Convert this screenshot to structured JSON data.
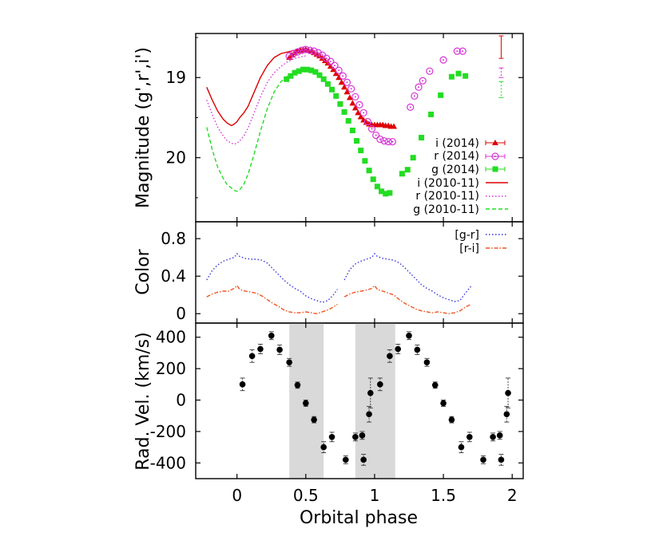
{
  "figure": {
    "shared_xlabel": "Orbital phase"
  },
  "chart_data": [
    {
      "type": "line",
      "panel": "magnitude",
      "ylabel": "Magnitude (g',r',i')",
      "xlim": [
        -0.3,
        2.08
      ],
      "ylim": [
        20.8,
        18.45
      ],
      "yaxis_inverted": true,
      "xticks": [
        "0",
        "0.5",
        "1",
        "1.5",
        "2"
      ],
      "yticks": [
        "19",
        "20"
      ],
      "legend_placement": "right",
      "series": [
        {
          "name": "i (2014)",
          "style": "filled-triangle",
          "color": "#dd0000",
          "x": [
            0.38,
            0.4,
            0.42,
            0.44,
            0.46,
            0.48,
            0.5,
            0.52,
            0.54,
            0.56,
            0.58,
            0.6,
            0.62,
            0.64,
            0.66,
            0.68,
            0.7,
            0.72,
            0.74,
            0.76,
            0.78,
            0.8,
            0.82,
            0.84,
            0.86,
            0.88,
            0.9,
            0.92,
            0.94,
            0.96,
            0.98,
            1.0,
            1.02,
            1.04,
            1.06,
            1.08,
            1.1,
            1.12,
            1.14
          ],
          "y": [
            18.75,
            18.72,
            18.69,
            18.67,
            18.66,
            18.65,
            18.65,
            18.66,
            18.67,
            18.69,
            18.71,
            18.73,
            18.76,
            18.79,
            18.82,
            18.86,
            18.9,
            18.95,
            19.0,
            19.06,
            19.12,
            19.18,
            19.25,
            19.32,
            19.38,
            19.44,
            19.49,
            19.53,
            19.56,
            19.58,
            19.59,
            19.59,
            19.59,
            19.59,
            19.59,
            19.6,
            19.6,
            19.61,
            19.61
          ]
        },
        {
          "name": "r (2014)",
          "style": "open-circle",
          "color": "#d633d6",
          "x": [
            0.38,
            0.41,
            0.44,
            0.47,
            0.5,
            0.53,
            0.56,
            0.59,
            0.62,
            0.65,
            0.68,
            0.71,
            0.74,
            0.77,
            0.8,
            0.83,
            0.86,
            0.89,
            0.92,
            0.95,
            0.98,
            1.01,
            1.04,
            1.07,
            1.1,
            1.13,
            1.26,
            1.29,
            1.32,
            1.35,
            1.4,
            1.5,
            1.6,
            1.64
          ],
          "y": [
            18.73,
            18.7,
            18.68,
            18.66,
            18.65,
            18.66,
            18.67,
            18.69,
            18.72,
            18.76,
            18.8,
            18.85,
            18.91,
            18.98,
            19.06,
            19.14,
            19.24,
            19.34,
            19.44,
            19.55,
            19.64,
            19.72,
            19.77,
            19.79,
            19.8,
            19.8,
            19.37,
            19.23,
            19.12,
            19.04,
            18.92,
            18.78,
            18.67,
            18.67
          ]
        },
        {
          "name": "g (2014)",
          "style": "filled-square",
          "color": "#22dd22",
          "x": [
            0.36,
            0.39,
            0.42,
            0.45,
            0.48,
            0.51,
            0.54,
            0.57,
            0.6,
            0.63,
            0.66,
            0.69,
            0.72,
            0.75,
            0.78,
            0.81,
            0.84,
            0.87,
            0.9,
            0.93,
            0.96,
            0.99,
            1.02,
            1.05,
            1.08,
            1.11,
            1.2,
            1.24,
            1.28,
            1.34,
            1.41,
            1.48,
            1.56,
            1.61,
            1.66
          ],
          "y": [
            19.02,
            18.98,
            18.94,
            18.92,
            18.9,
            18.9,
            18.91,
            18.93,
            18.97,
            19.02,
            19.08,
            19.15,
            19.23,
            19.33,
            19.43,
            19.54,
            19.66,
            19.79,
            19.91,
            20.04,
            20.16,
            20.27,
            20.36,
            20.42,
            20.45,
            20.44,
            20.2,
            20.15,
            20.0,
            19.75,
            19.46,
            19.22,
            18.99,
            18.95,
            18.98
          ]
        },
        {
          "name": "i (2010-11)",
          "style": "solid",
          "color": "#dd0000",
          "x": [
            -0.22,
            -0.18,
            -0.14,
            -0.1,
            -0.07,
            -0.04,
            -0.02,
            0.0,
            0.02,
            0.05,
            0.08,
            0.12,
            0.17,
            0.22,
            0.27,
            0.32,
            0.37,
            0.42,
            0.47,
            0.5
          ],
          "y": [
            19.12,
            19.28,
            19.42,
            19.52,
            19.57,
            19.6,
            19.58,
            19.55,
            19.5,
            19.44,
            19.36,
            19.2,
            19.0,
            18.85,
            18.75,
            18.7,
            18.68,
            18.66,
            18.65,
            18.65
          ]
        },
        {
          "name": "r (2010-11)",
          "style": "dotted",
          "color": "#d633d6",
          "x": [
            -0.22,
            -0.18,
            -0.14,
            -0.1,
            -0.07,
            -0.04,
            -0.02,
            0.0,
            0.02,
            0.05,
            0.08,
            0.12,
            0.17,
            0.22,
            0.27,
            0.32,
            0.37,
            0.42,
            0.47,
            0.5
          ],
          "y": [
            19.28,
            19.46,
            19.62,
            19.73,
            19.79,
            19.82,
            19.83,
            19.82,
            19.79,
            19.73,
            19.63,
            19.46,
            19.24,
            19.06,
            18.94,
            18.86,
            18.8,
            18.76,
            18.74,
            18.73
          ]
        },
        {
          "name": "g (2010-11)",
          "style": "dashed",
          "color": "#22dd22",
          "x": [
            -0.22,
            -0.18,
            -0.14,
            -0.1,
            -0.07,
            -0.04,
            -0.02,
            0.0,
            0.02,
            0.05,
            0.08,
            0.12,
            0.17,
            0.22,
            0.27,
            0.32,
            0.37,
            0.42,
            0.47,
            0.5
          ],
          "y": [
            19.62,
            19.9,
            20.12,
            20.26,
            20.34,
            20.38,
            20.41,
            20.42,
            20.4,
            20.33,
            20.21,
            19.98,
            19.67,
            19.39,
            19.18,
            19.05,
            18.98,
            18.94,
            18.92,
            18.91
          ]
        }
      ],
      "error_bars": {
        "x": 1.92,
        "items": [
          {
            "color": "#dd0000",
            "y_center": 18.62,
            "half_height": 0.14
          },
          {
            "color": "#d633d6",
            "y_center": 18.94,
            "half_height": 0.06
          },
          {
            "color": "#22dd22",
            "y_center": 19.15,
            "half_height": 0.1
          }
        ]
      }
    },
    {
      "type": "line",
      "panel": "color",
      "ylabel": "Color",
      "xlim": [
        -0.3,
        2.08
      ],
      "ylim": [
        -0.1,
        0.98
      ],
      "yticks": [
        "0",
        "0.4",
        "0.8"
      ],
      "legend_placement": "top-right",
      "series": [
        {
          "name": "[g-r]",
          "style": "dotted",
          "color": "#3333dd",
          "x": [
            -0.22,
            -0.18,
            -0.14,
            -0.1,
            -0.06,
            -0.02,
            0.0,
            0.02,
            0.06,
            0.1,
            0.14,
            0.18,
            0.22,
            0.26,
            0.3,
            0.34,
            0.38,
            0.42,
            0.46,
            0.5,
            0.54,
            0.58,
            0.62,
            0.66,
            0.7,
            0.73
          ],
          "y": [
            0.36,
            0.46,
            0.52,
            0.56,
            0.58,
            0.6,
            0.64,
            0.61,
            0.59,
            0.58,
            0.58,
            0.57,
            0.54,
            0.48,
            0.42,
            0.36,
            0.31,
            0.27,
            0.24,
            0.19,
            0.16,
            0.14,
            0.12,
            0.14,
            0.2,
            0.26
          ],
          "x2": [
            0.78,
            0.82,
            0.86,
            0.9,
            0.94,
            0.98,
            1.0,
            1.02,
            1.06,
            1.1,
            1.14,
            1.18,
            1.22,
            1.26,
            1.3,
            1.34,
            1.38,
            1.42,
            1.46,
            1.5,
            1.54,
            1.58,
            1.62,
            1.66,
            1.7
          ],
          "y2": [
            0.36,
            0.47,
            0.53,
            0.56,
            0.58,
            0.6,
            0.64,
            0.61,
            0.59,
            0.58,
            0.57,
            0.54,
            0.49,
            0.43,
            0.37,
            0.31,
            0.27,
            0.24,
            0.2,
            0.17,
            0.15,
            0.13,
            0.14,
            0.22,
            0.29
          ]
        },
        {
          "name": "[r-i]",
          "style": "dash-dot",
          "color": "#ee5522",
          "x": [
            -0.22,
            -0.18,
            -0.14,
            -0.1,
            -0.06,
            -0.02,
            0.0,
            0.02,
            0.06,
            0.1,
            0.14,
            0.18,
            0.22,
            0.26,
            0.3,
            0.34,
            0.38,
            0.42,
            0.46,
            0.5,
            0.54,
            0.58,
            0.62,
            0.66,
            0.7,
            0.73
          ],
          "y": [
            0.18,
            0.21,
            0.23,
            0.24,
            0.24,
            0.27,
            0.3,
            0.26,
            0.24,
            0.23,
            0.22,
            0.19,
            0.15,
            0.11,
            0.08,
            0.04,
            0.02,
            0.01,
            0.01,
            0.02,
            0.01,
            0.0,
            0.02,
            0.04,
            0.07,
            0.1
          ],
          "x2": [
            0.78,
            0.82,
            0.86,
            0.9,
            0.94,
            0.98,
            1.0,
            1.02,
            1.06,
            1.1,
            1.14,
            1.18,
            1.22,
            1.26,
            1.3,
            1.34,
            1.38,
            1.42,
            1.46,
            1.5,
            1.54,
            1.58,
            1.62,
            1.66,
            1.7
          ],
          "y2": [
            0.18,
            0.21,
            0.23,
            0.24,
            0.25,
            0.27,
            0.3,
            0.26,
            0.24,
            0.22,
            0.2,
            0.15,
            0.11,
            0.08,
            0.05,
            0.03,
            0.02,
            0.01,
            0.02,
            0.01,
            0.0,
            0.01,
            0.03,
            0.07,
            0.1
          ]
        }
      ]
    },
    {
      "type": "scatter",
      "panel": "radial-velocity",
      "ylabel": "Rad. Vel. (km/s)",
      "xlabel": "Orbital phase",
      "xlim": [
        -0.3,
        2.08
      ],
      "ylim": [
        -500,
        490
      ],
      "yticks": [
        "-400",
        "-200",
        "0",
        "200",
        "400"
      ],
      "shaded_x_ranges": [
        [
          0.38,
          0.63
        ],
        [
          0.86,
          1.15
        ]
      ],
      "series": [
        {
          "name": "",
          "style": "filled-circle-with-errorbars",
          "color": "#000000",
          "x": [
            0.04,
            0.11,
            0.17,
            0.25,
            0.31,
            0.38,
            0.44,
            0.5,
            0.56,
            0.63,
            0.69,
            0.79,
            0.86,
            0.91,
            0.92,
            0.96,
            0.97,
            1.04,
            1.11,
            1.17,
            1.25,
            1.31,
            1.38,
            1.44,
            1.5,
            1.56,
            1.63,
            1.69,
            1.79,
            1.86,
            1.91,
            1.92,
            1.96,
            1.97
          ],
          "y": [
            100,
            280,
            325,
            410,
            320,
            240,
            95,
            -20,
            -125,
            -300,
            -235,
            -380,
            -235,
            -225,
            -380,
            -90,
            45,
            100,
            280,
            325,
            410,
            320,
            240,
            95,
            -20,
            -125,
            -300,
            -235,
            -380,
            -235,
            -225,
            -380,
            -90,
            45
          ],
          "yerr": [
            40,
            40,
            30,
            25,
            30,
            25,
            20,
            20,
            20,
            35,
            30,
            25,
            25,
            25,
            35,
            50,
            95,
            40,
            40,
            30,
            25,
            30,
            25,
            20,
            20,
            20,
            35,
            30,
            25,
            25,
            25,
            35,
            50,
            95
          ]
        }
      ]
    }
  ]
}
